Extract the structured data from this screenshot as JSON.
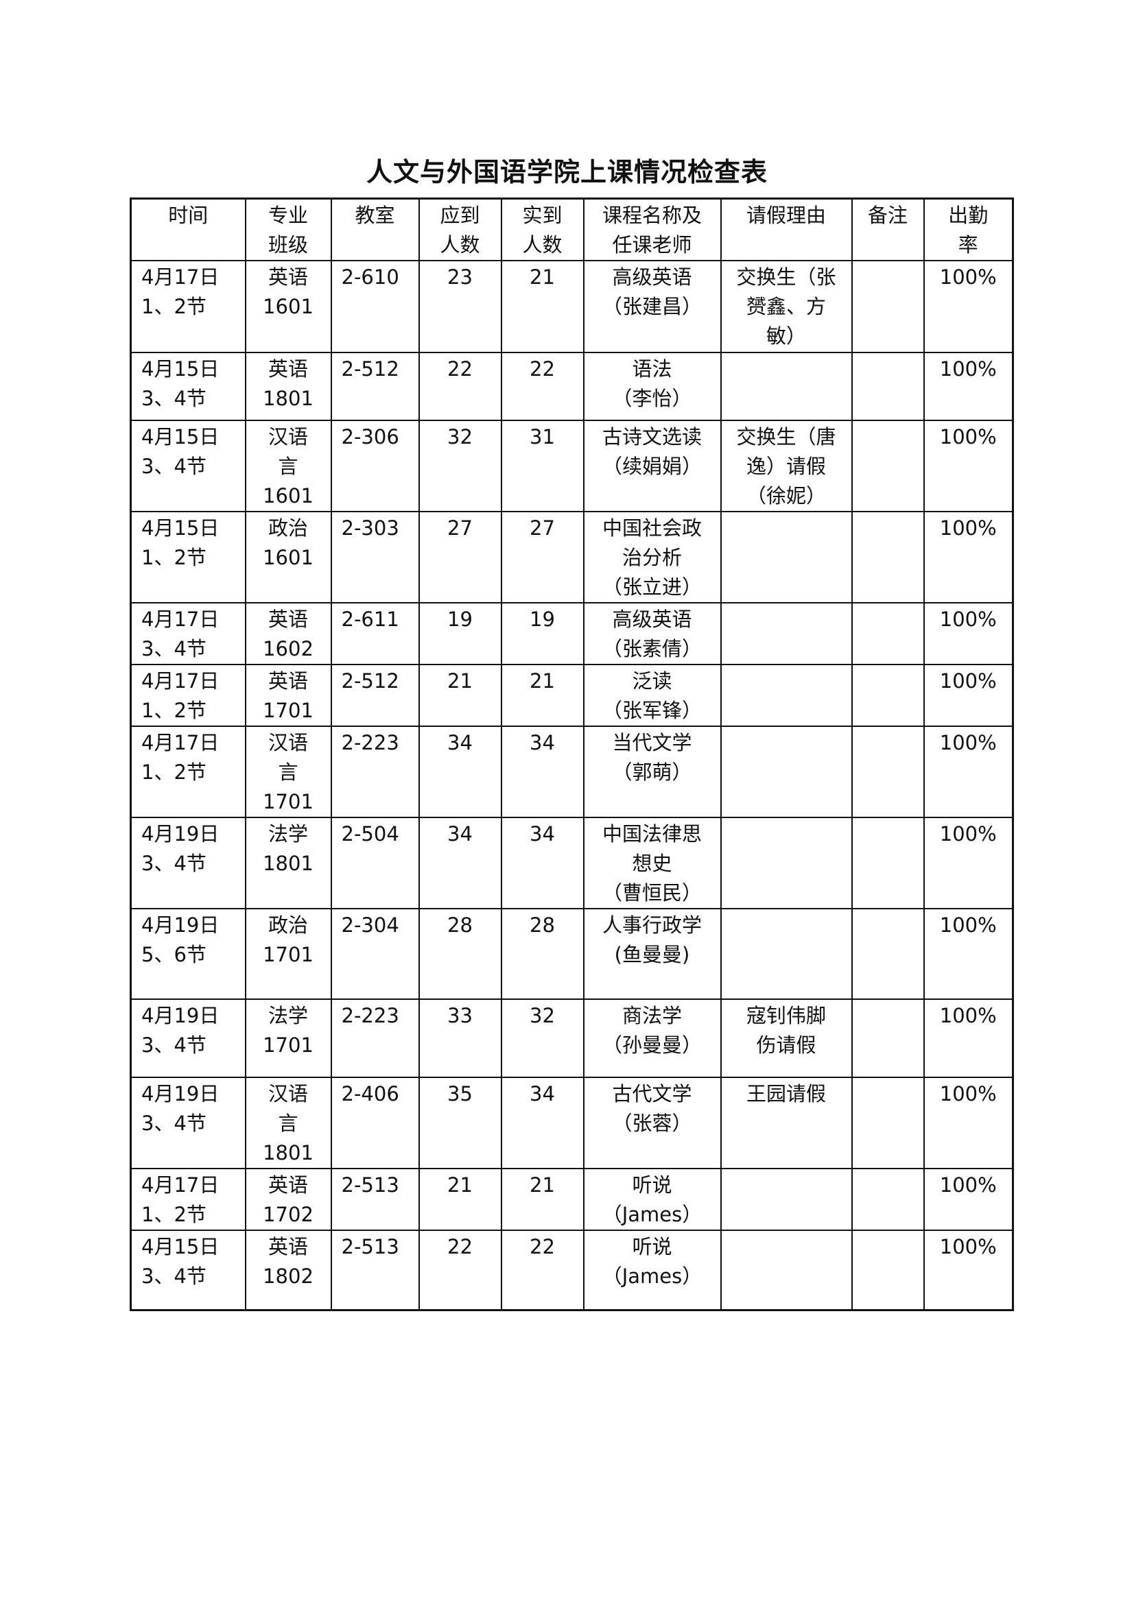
{
  "title": "人文与外国语学院上课情况检查表",
  "table": {
    "headers": [
      "时间",
      "专业\n班级",
      "教室",
      "应到\n人数",
      "实到\n人数",
      "课程名称及\n任课老师",
      "请假理由",
      "备注",
      "出勤\n率"
    ],
    "rows": [
      {
        "time": "4月17日\n1、2节",
        "class": "英语\n1601",
        "room": "2-610",
        "expected": "23",
        "actual": "21",
        "course": "高级英语\n（张建昌）",
        "leave": "交换生（张\n赟鑫、方\n敏）",
        "note": "",
        "rate": "100%"
      },
      {
        "time": "4月15日\n3、4节",
        "class": "英语\n1801",
        "room": "2-512",
        "expected": "22",
        "actual": "22",
        "course": "语法\n（李怡）",
        "leave": "",
        "note": "",
        "rate": "100%"
      },
      {
        "time": "4月15日\n3、4节",
        "class": "汉语\n言\n1601",
        "room": "2-306",
        "expected": "32",
        "actual": "31",
        "course": "古诗文选读\n（续娟娟）",
        "leave": "交换生（唐\n逸）请假\n（徐妮）",
        "note": "",
        "rate": "100%"
      },
      {
        "time": "4月15日\n1、2节",
        "class": "政治\n1601",
        "room": "2-303",
        "expected": "27",
        "actual": "27",
        "course": "中国社会政\n治分析\n（张立进）",
        "leave": "",
        "note": "",
        "rate": "100%"
      },
      {
        "time": "4月17日\n3、4节",
        "class": "英语\n1602",
        "room": "2-611",
        "expected": "19",
        "actual": "19",
        "course": "高级英语\n（张素倩）",
        "leave": "",
        "note": "",
        "rate": "100%"
      },
      {
        "time": "4月17日\n1、2节",
        "class": "英语\n1701",
        "room": "2-512",
        "expected": "21",
        "actual": "21",
        "course": "泛读\n（张军锋）",
        "leave": "",
        "note": "",
        "rate": "100%"
      },
      {
        "time": "4月17日\n1、2节",
        "class": "汉语\n言\n1701",
        "room": "2-223",
        "expected": "34",
        "actual": "34",
        "course": "当代文学\n（郭萌）",
        "leave": "",
        "note": "",
        "rate": "100%"
      },
      {
        "time": "4月19日\n3、4节",
        "class": "法学\n1801",
        "room": "2-504",
        "expected": "34",
        "actual": "34",
        "course": "中国法律思\n想史\n（曹恒民）",
        "leave": "",
        "note": "",
        "rate": "100%"
      },
      {
        "time": "4月19日\n5、6节",
        "class": "政治\n1701",
        "room": "2-304",
        "expected": "28",
        "actual": "28",
        "course": "人事行政学\n(鱼曼曼)",
        "leave": "",
        "note": "",
        "rate": "100%"
      },
      {
        "time": "4月19日\n3、4节",
        "class": "法学\n1701",
        "room": "2-223",
        "expected": "33",
        "actual": "32",
        "course": "商法学\n（孙曼曼）",
        "leave": "寇钊伟脚\n伤请假",
        "note": "",
        "rate": "100%"
      },
      {
        "time": "4月19日\n3、4节",
        "class": "汉语\n言\n1801",
        "room": "2-406",
        "expected": "35",
        "actual": "34",
        "course": "古代文学\n（张蓉）",
        "leave": "王园请假",
        "note": "",
        "rate": "100%"
      },
      {
        "time": "4月17日\n1、2节",
        "class": "英语\n1702",
        "room": "2-513",
        "expected": "21",
        "actual": "21",
        "course": "听说\n（James）",
        "leave": "",
        "note": "",
        "rate": "100%"
      },
      {
        "time": "4月15日\n3、4节",
        "class": "英语\n1802",
        "room": "2-513",
        "expected": "22",
        "actual": "22",
        "course": "听说\n（James）",
        "leave": "",
        "note": "",
        "rate": "100%"
      }
    ]
  }
}
